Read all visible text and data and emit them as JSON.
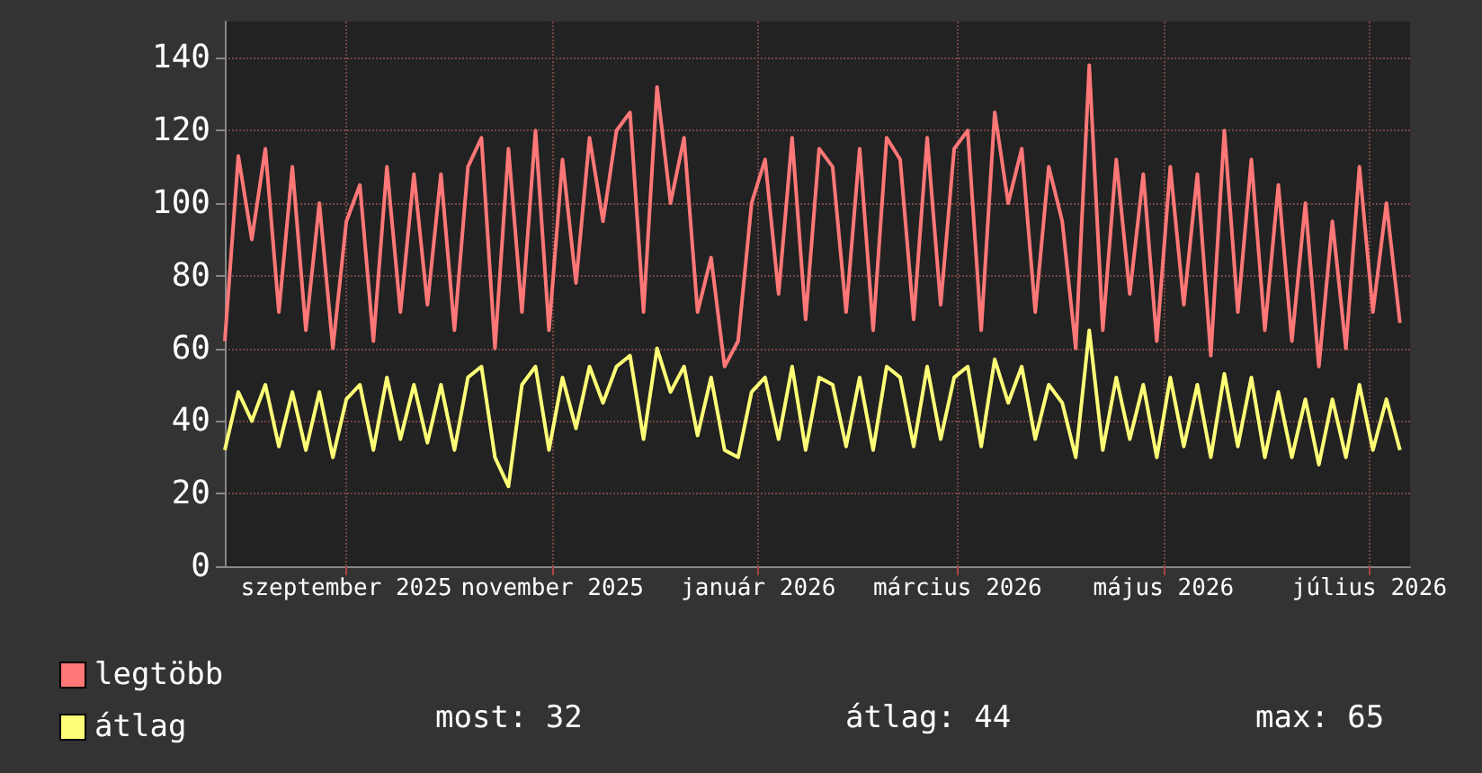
{
  "chart_data": {
    "type": "line",
    "x": [
      "2025-07-27",
      "2025-07-31",
      "2025-08-04",
      "2025-08-08",
      "2025-08-12",
      "2025-08-16",
      "2025-08-20",
      "2025-08-24",
      "2025-08-28",
      "2025-09-01",
      "2025-09-05",
      "2025-09-09",
      "2025-09-13",
      "2025-09-17",
      "2025-09-21",
      "2025-09-25",
      "2025-09-29",
      "2025-10-03",
      "2025-10-07",
      "2025-10-11",
      "2025-10-15",
      "2025-10-19",
      "2025-10-23",
      "2025-10-27",
      "2025-10-31",
      "2025-11-04",
      "2025-11-08",
      "2025-11-12",
      "2025-11-16",
      "2025-11-20",
      "2025-11-24",
      "2025-11-28",
      "2025-12-02",
      "2025-12-06",
      "2025-12-10",
      "2025-12-14",
      "2025-12-18",
      "2025-12-22",
      "2025-12-26",
      "2025-12-30",
      "2026-01-03",
      "2026-01-07",
      "2026-01-11",
      "2026-01-15",
      "2026-01-19",
      "2026-01-23",
      "2026-01-27",
      "2026-01-31",
      "2026-02-04",
      "2026-02-08",
      "2026-02-12",
      "2026-02-16",
      "2026-02-20",
      "2026-02-24",
      "2026-02-28",
      "2026-03-04",
      "2026-03-08",
      "2026-03-12",
      "2026-03-16",
      "2026-03-20",
      "2026-03-24",
      "2026-03-28",
      "2026-04-01",
      "2026-04-05",
      "2026-04-09",
      "2026-04-13",
      "2026-04-17",
      "2026-04-21",
      "2026-04-25",
      "2026-04-29",
      "2026-05-03",
      "2026-05-07",
      "2026-05-11",
      "2026-05-15",
      "2026-05-19",
      "2026-05-23",
      "2026-05-27",
      "2026-05-31",
      "2026-06-04",
      "2026-06-08",
      "2026-06-12",
      "2026-06-16",
      "2026-06-20",
      "2026-06-24",
      "2026-06-28",
      "2026-07-02",
      "2026-07-06",
      "2026-07-10"
    ],
    "series": [
      {
        "name": "legtöbb",
        "color": "#ff7777",
        "values": [
          62,
          113,
          90,
          115,
          70,
          110,
          65,
          100,
          60,
          95,
          105,
          62,
          110,
          70,
          108,
          72,
          108,
          65,
          110,
          118,
          60,
          115,
          70,
          120,
          65,
          112,
          78,
          118,
          95,
          120,
          125,
          70,
          132,
          100,
          118,
          70,
          85,
          55,
          62,
          100,
          112,
          75,
          118,
          68,
          115,
          110,
          70,
          115,
          65,
          118,
          112,
          68,
          118,
          72,
          115,
          120,
          65,
          125,
          100,
          115,
          70,
          110,
          95,
          60,
          138,
          65,
          112,
          75,
          108,
          62,
          110,
          72,
          108,
          58,
          120,
          70,
          112,
          65,
          105,
          62,
          100,
          55,
          95,
          60,
          110,
          70,
          100,
          67
        ]
      },
      {
        "name": "átlag",
        "color": "#ffff77",
        "values": [
          32,
          48,
          40,
          50,
          33,
          48,
          32,
          48,
          30,
          46,
          50,
          32,
          52,
          35,
          50,
          34,
          50,
          32,
          52,
          55,
          30,
          22,
          50,
          55,
          32,
          52,
          38,
          55,
          45,
          55,
          58,
          35,
          60,
          48,
          55,
          36,
          52,
          32,
          30,
          48,
          52,
          35,
          55,
          32,
          52,
          50,
          33,
          52,
          32,
          55,
          52,
          33,
          55,
          35,
          52,
          55,
          33,
          57,
          45,
          55,
          35,
          50,
          45,
          30,
          65,
          32,
          52,
          35,
          50,
          30,
          52,
          33,
          50,
          30,
          53,
          33,
          52,
          30,
          48,
          30,
          46,
          28,
          46,
          30,
          50,
          32,
          46,
          32
        ]
      }
    ],
    "xlim": [
      "2025-07-27",
      "2026-07-13"
    ],
    "xticks": [
      {
        "value": "2025-09-01",
        "label": "szeptember 2025"
      },
      {
        "value": "2025-11-01",
        "label": "november 2025"
      },
      {
        "value": "2026-01-01",
        "label": "január 2026"
      },
      {
        "value": "2026-03-01",
        "label": "március 2026"
      },
      {
        "value": "2026-05-01",
        "label": "május 2026"
      },
      {
        "value": "2026-07-01",
        "label": "július 2026"
      }
    ],
    "ylim": [
      0,
      150
    ],
    "yticks": [
      0,
      20,
      40,
      60,
      80,
      100,
      120,
      140
    ],
    "grid": true,
    "legend": "bottom left",
    "marker": "none",
    "line_style": "solid",
    "annotations": [
      "most: 32",
      "átlag: 44",
      "max: 65"
    ]
  }
}
